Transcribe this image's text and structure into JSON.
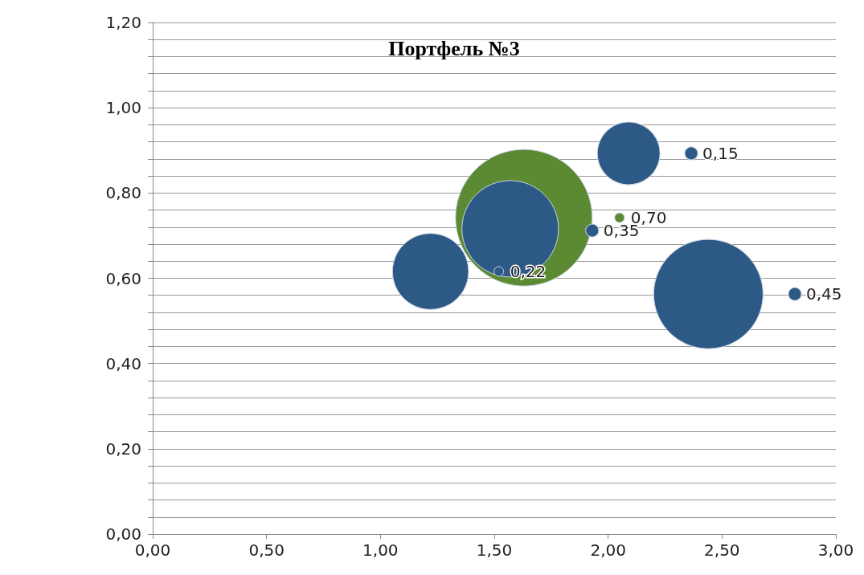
{
  "chart_data": {
    "type": "bubble",
    "title": "Портфель №3",
    "series": [
      {
        "x": [
          1.63,
          1.22,
          1.57,
          2.09,
          2.44
        ],
        "values": [
          0.742,
          0.616,
          0.716,
          0.893,
          0.563
        ],
        "sizes": [
          1,
          0.31,
          0.5,
          0.21,
          0.64
        ],
        "colors": [
          "#5b8a32",
          "#2d5986",
          "#2d5986",
          "#2d5986",
          "#2d5986"
        ]
      },
      {
        "x": [
          1.52,
          1.93,
          2.05,
          2.365,
          2.82
        ],
        "values": [
          0.616,
          0.712,
          0.742,
          0.893,
          0.563
        ],
        "sizes": [
          0.005,
          0.009,
          0.005,
          0.009,
          0.009
        ],
        "colors": [
          "#2d5986",
          "#2d5986",
          "#5b8a32",
          "#2d5986",
          "#2d5986"
        ]
      }
    ],
    "annotations": [
      {
        "text": "0,22",
        "x": 1.52,
        "y": 0.616
      },
      {
        "text": "0,35",
        "x": 1.93,
        "y": 0.712
      },
      {
        "text": "0,70",
        "x": 2.05,
        "y": 0.742
      },
      {
        "text": "0,15",
        "x": 2.365,
        "y": 0.893
      },
      {
        "text": "0,45",
        "x": 2.82,
        "y": 0.563
      }
    ],
    "xlim": [
      0,
      3
    ],
    "xticks": [
      {
        "value": 0,
        "label": "0,00"
      },
      {
        "value": 0.5,
        "label": "0,50"
      },
      {
        "value": 1,
        "label": "1,00"
      },
      {
        "value": 1.5,
        "label": "1,50"
      },
      {
        "value": 2,
        "label": "2,00"
      },
      {
        "value": 2.5,
        "label": "2,50"
      },
      {
        "value": 3,
        "label": "3,00"
      }
    ],
    "ylim": [
      0,
      1.2
    ],
    "yticks": [
      {
        "value": 0,
        "label": "0,00"
      },
      {
        "value": 0.04,
        "label": null
      },
      {
        "value": 0.08,
        "label": null
      },
      {
        "value": 0.12,
        "label": null
      },
      {
        "value": 0.16,
        "label": null
      },
      {
        "value": 0.2,
        "label": "0,20"
      },
      {
        "value": 0.24,
        "label": null
      },
      {
        "value": 0.28,
        "label": null
      },
      {
        "value": 0.32,
        "label": null
      },
      {
        "value": 0.36,
        "label": null
      },
      {
        "value": 0.4,
        "label": "0,40"
      },
      {
        "value": 0.44,
        "label": null
      },
      {
        "value": 0.48,
        "label": null
      },
      {
        "value": 0.52,
        "label": null
      },
      {
        "value": 0.56,
        "label": null
      },
      {
        "value": 0.6,
        "label": "0,60"
      },
      {
        "value": 0.64,
        "label": null
      },
      {
        "value": 0.68,
        "label": null
      },
      {
        "value": 0.72,
        "label": null
      },
      {
        "value": 0.76,
        "label": null
      },
      {
        "value": 0.8,
        "label": "0,80"
      },
      {
        "value": 0.84,
        "label": null
      },
      {
        "value": 0.88,
        "label": null
      },
      {
        "value": 0.92,
        "label": null
      },
      {
        "value": 0.96,
        "label": null
      },
      {
        "value": 1,
        "label": "1,00"
      },
      {
        "value": 1.04,
        "label": null
      },
      {
        "value": 1.08,
        "label": null
      },
      {
        "value": 1.12,
        "label": null
      },
      {
        "value": 1.16,
        "label": null
      },
      {
        "value": 1.2,
        "label": "1,20"
      }
    ],
    "grid": "y"
  }
}
